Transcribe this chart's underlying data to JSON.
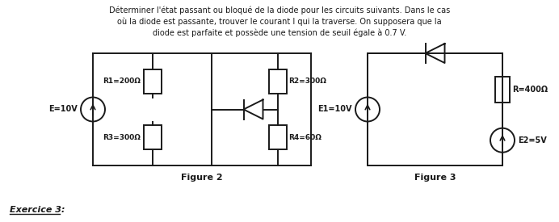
{
  "title_text": "Déterminer l'état passant ou bloqué de la diode pour les circuits suivants. Dans le cas\noù la diode est passante, trouver le courant I qui la traverse. On supposera que la\ndiode est parfaite et possède une tension de seuil égale à 0.7 V.",
  "exercice_text": "Exercice 3:",
  "figure2_label": "Figure 2",
  "figure3_label": "Figure 3",
  "bg_color": "#ffffff",
  "c": "#1a1a1a",
  "E_label": "E=10V",
  "R1_label": "R1=200Ω",
  "R2_label": "R2=300Ω",
  "R3_label": "R3=300Ω",
  "R4_label": "R4=60Ω",
  "E1_label": "E1=10V",
  "R_label": "R=400Ω",
  "E2_label": "E2=5V"
}
